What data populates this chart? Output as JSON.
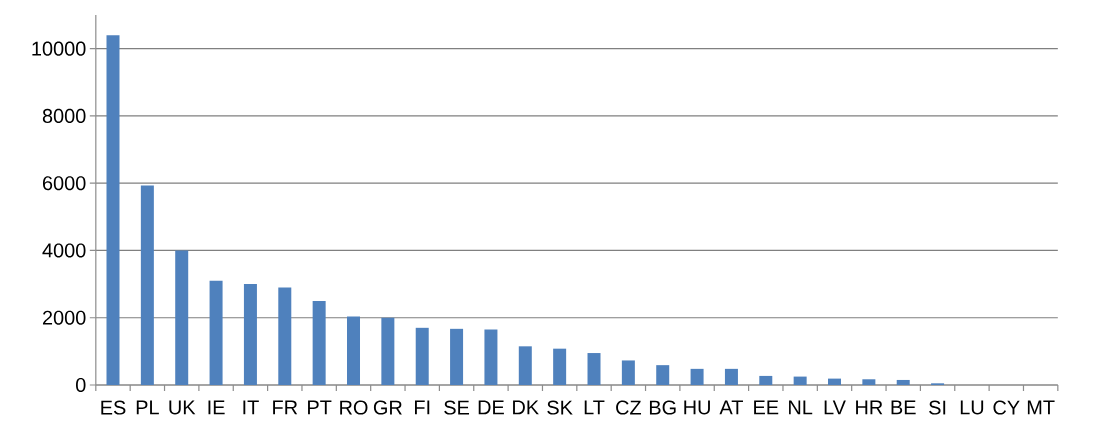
{
  "chart_data": {
    "type": "bar",
    "categories": [
      "ES",
      "PL",
      "UK",
      "IE",
      "IT",
      "FR",
      "PT",
      "RO",
      "GR",
      "FI",
      "SE",
      "DE",
      "DK",
      "SK",
      "LT",
      "CZ",
      "BG",
      "HU",
      "AT",
      "EE",
      "NL",
      "LV",
      "HR",
      "BE",
      "SI",
      "LU",
      "CY",
      "MT"
    ],
    "values": [
      10400,
      5930,
      4000,
      3100,
      3000,
      2900,
      2500,
      2040,
      2000,
      1700,
      1670,
      1650,
      1150,
      1080,
      950,
      730,
      590,
      480,
      480,
      270,
      250,
      190,
      170,
      150,
      50,
      0,
      0,
      0
    ],
    "color": "#4f81bd",
    "ylim": [
      0,
      11000
    ],
    "yticks": [
      0,
      2000,
      4000,
      6000,
      8000,
      10000
    ],
    "grid": "y"
  }
}
